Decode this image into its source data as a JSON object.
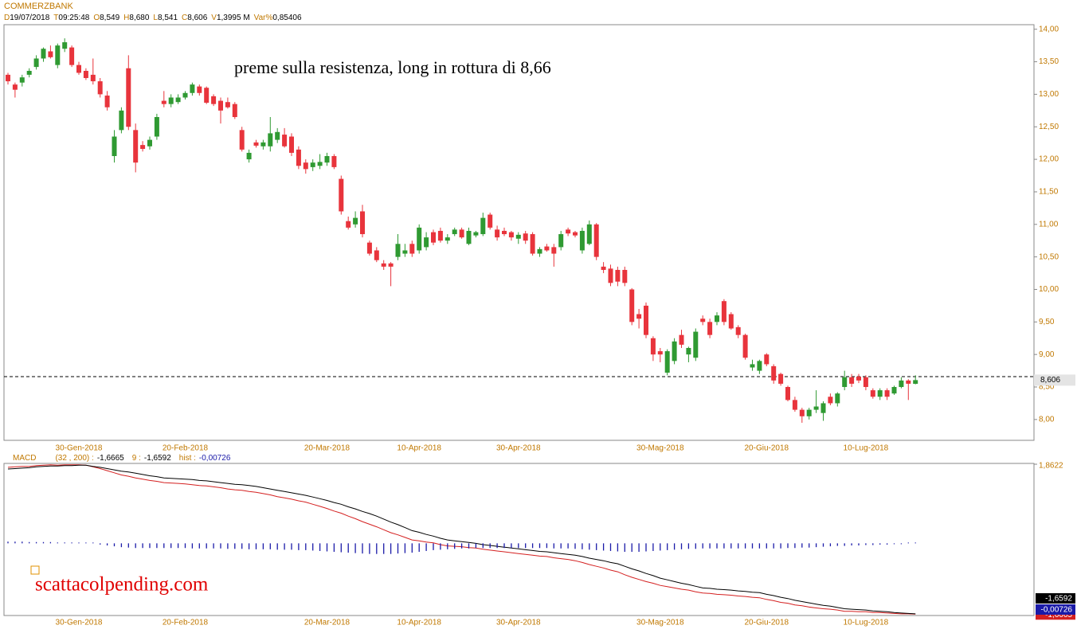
{
  "chart_data": [
    {
      "type": "candlestick",
      "symbol": "COMMERZBANK",
      "info": [
        {
          "key": "D",
          "value": "19/07/2018"
        },
        {
          "key": "T",
          "value": "09:25:48"
        },
        {
          "key": "O",
          "value": "8,549"
        },
        {
          "key": "H",
          "value": "8,680"
        },
        {
          "key": "L",
          "value": "8,541"
        },
        {
          "key": "C",
          "value": "8,606"
        },
        {
          "key": "V",
          "value": "1,3995 M"
        },
        {
          "key": "Var%",
          "value": "0,85406"
        }
      ],
      "annotation": "preme sulla resistenza, long in rottura di 8,66",
      "hline": 8.66,
      "up_color": "#2f9a32",
      "down_color": "#e8343c",
      "categories": [
        null,
        null,
        null,
        null,
        null,
        null,
        null,
        null,
        null,
        null,
        "30-Gen-2018",
        null,
        null,
        null,
        null,
        null,
        null,
        null,
        null,
        null,
        null,
        null,
        null,
        null,
        null,
        "20-Feb-2018",
        null,
        null,
        null,
        null,
        null,
        null,
        null,
        null,
        null,
        null,
        null,
        null,
        null,
        null,
        null,
        null,
        null,
        null,
        null,
        "20-Mar-2018",
        null,
        null,
        null,
        null,
        null,
        null,
        null,
        null,
        null,
        null,
        null,
        null,
        "10-Apr-2018",
        null,
        null,
        null,
        null,
        null,
        null,
        null,
        null,
        null,
        null,
        null,
        null,
        null,
        "30-Apr-2018",
        null,
        null,
        null,
        null,
        null,
        null,
        null,
        null,
        null,
        null,
        null,
        null,
        null,
        null,
        null,
        null,
        null,
        null,
        null,
        "30-Mag-2018",
        null,
        null,
        null,
        null,
        null,
        null,
        null,
        null,
        null,
        null,
        null,
        null,
        null,
        null,
        "20-Giu-2018",
        null,
        null,
        null,
        null,
        null,
        null,
        null,
        null,
        null,
        null,
        null,
        null,
        null,
        "10-Lug-2018",
        null,
        null,
        null,
        null,
        null,
        null,
        null
      ],
      "open": [
        13.3,
        13.15,
        13.18,
        13.3,
        13.42,
        13.55,
        13.66,
        13.45,
        13.7,
        13.72,
        13.45,
        13.36,
        13.3,
        13.2,
        12.98,
        12.05,
        12.45,
        13.4,
        12.45,
        12.22,
        12.2,
        12.35,
        12.9,
        12.85,
        12.88,
        12.95,
        13.02,
        13.12,
        13.1,
        12.97,
        12.9,
        12.88,
        12.85,
        12.45,
        12.0,
        12.26,
        12.2,
        12.2,
        12.3,
        12.38,
        12.35,
        12.15,
        11.95,
        11.88,
        11.9,
        11.95,
        12.05,
        11.7,
        11.05,
        11.0,
        11.2,
        10.72,
        10.6,
        10.4,
        10.4,
        10.5,
        10.55,
        10.7,
        10.6,
        10.65,
        10.88,
        10.9,
        10.75,
        10.85,
        10.92,
        10.7,
        10.83,
        10.85,
        11.15,
        10.92,
        10.9,
        10.88,
        10.78,
        10.86,
        10.85,
        10.55,
        10.66,
        10.65,
        10.65,
        10.92,
        10.88,
        10.6,
        10.7,
        11.0,
        10.35,
        10.32,
        10.3,
        10.3,
        10.0,
        9.62,
        9.75,
        9.25,
        9.05,
        8.72,
        8.9,
        9.3,
        9.0,
        8.95,
        9.55,
        9.5,
        9.5,
        9.82,
        9.62,
        9.42,
        9.3,
        8.8,
        8.75,
        9.0,
        8.82,
        8.7,
        8.5,
        8.3,
        8.15,
        8.05,
        8.15,
        8.1,
        8.35,
        8.25,
        8.5,
        8.65,
        8.66,
        8.65,
        8.45,
        8.35,
        8.45,
        8.4,
        8.5,
        8.6,
        8.549
      ],
      "high": [
        13.33,
        13.18,
        13.3,
        13.4,
        13.6,
        13.72,
        13.75,
        13.78,
        13.86,
        13.75,
        13.5,
        13.4,
        13.55,
        13.25,
        13.05,
        12.45,
        12.8,
        13.6,
        12.55,
        12.28,
        12.35,
        12.7,
        13.05,
        13.0,
        13.0,
        13.05,
        13.18,
        13.15,
        13.12,
        13.0,
        12.95,
        12.95,
        12.88,
        12.5,
        12.15,
        12.3,
        12.3,
        12.65,
        12.48,
        12.48,
        12.4,
        12.2,
        12.0,
        12.0,
        12.08,
        12.1,
        12.08,
        11.75,
        11.12,
        11.2,
        11.3,
        10.75,
        10.65,
        10.45,
        10.42,
        10.85,
        10.7,
        10.75,
        11.0,
        10.88,
        10.92,
        10.95,
        10.85,
        10.95,
        10.95,
        10.95,
        10.9,
        11.18,
        11.18,
        10.98,
        10.95,
        10.9,
        10.88,
        10.9,
        10.88,
        10.65,
        10.7,
        10.7,
        10.9,
        10.95,
        10.9,
        10.95,
        11.06,
        11.02,
        10.42,
        10.38,
        10.35,
        10.35,
        10.02,
        9.7,
        9.8,
        9.28,
        9.1,
        9.08,
        9.25,
        9.38,
        9.12,
        9.4,
        9.6,
        9.55,
        9.65,
        9.85,
        9.65,
        9.45,
        9.32,
        8.92,
        8.92,
        9.02,
        8.85,
        8.72,
        8.52,
        8.35,
        8.18,
        8.18,
        8.45,
        8.28,
        8.4,
        8.42,
        8.75,
        8.7,
        8.7,
        8.68,
        8.48,
        8.48,
        8.48,
        8.52,
        8.65,
        8.62,
        8.68
      ],
      "low": [
        13.15,
        12.95,
        13.12,
        13.26,
        13.38,
        13.5,
        13.55,
        13.4,
        13.65,
        13.42,
        13.3,
        13.22,
        13.15,
        12.95,
        12.75,
        11.95,
        12.4,
        12.45,
        11.8,
        12.12,
        12.15,
        12.3,
        12.8,
        12.8,
        12.85,
        12.92,
        12.98,
        12.98,
        12.85,
        12.82,
        12.55,
        12.78,
        12.62,
        12.12,
        11.95,
        12.18,
        12.15,
        12.12,
        12.25,
        12.18,
        12.05,
        11.85,
        11.78,
        11.82,
        11.85,
        11.9,
        11.85,
        11.15,
        10.92,
        10.95,
        10.8,
        10.52,
        10.42,
        10.3,
        10.05,
        10.45,
        10.5,
        10.5,
        10.55,
        10.6,
        10.68,
        10.72,
        10.7,
        10.82,
        10.78,
        10.68,
        10.8,
        10.82,
        10.92,
        10.75,
        10.82,
        10.75,
        10.7,
        10.7,
        10.52,
        10.5,
        10.58,
        10.35,
        10.6,
        10.82,
        10.8,
        10.55,
        10.68,
        10.45,
        10.25,
        10.05,
        10.05,
        10.05,
        9.45,
        9.4,
        9.25,
        8.9,
        8.88,
        8.68,
        8.85,
        9.1,
        8.88,
        8.9,
        9.45,
        9.25,
        9.45,
        9.45,
        9.38,
        9.25,
        8.92,
        8.75,
        8.7,
        8.82,
        8.55,
        8.52,
        8.28,
        8.12,
        7.95,
        8.0,
        8.1,
        7.98,
        8.22,
        8.2,
        8.45,
        8.5,
        8.56,
        8.45,
        8.32,
        8.3,
        8.3,
        8.38,
        8.48,
        8.3,
        8.541
      ],
      "close": [
        13.2,
        13.07,
        13.26,
        13.36,
        13.55,
        13.7,
        13.57,
        13.75,
        13.8,
        13.45,
        13.33,
        13.25,
        13.2,
        13.0,
        12.8,
        12.35,
        12.75,
        12.5,
        11.95,
        12.16,
        12.3,
        12.65,
        12.85,
        12.95,
        12.95,
        13.02,
        13.15,
        13.02,
        12.87,
        12.85,
        12.75,
        12.8,
        12.65,
        12.15,
        12.1,
        12.21,
        12.26,
        12.4,
        12.42,
        12.2,
        12.1,
        11.9,
        11.85,
        11.95,
        11.96,
        12.05,
        11.88,
        11.2,
        10.95,
        11.1,
        10.85,
        10.55,
        10.45,
        10.35,
        10.35,
        10.7,
        10.6,
        10.55,
        10.95,
        10.8,
        10.72,
        10.75,
        10.8,
        10.92,
        10.8,
        10.9,
        10.88,
        11.1,
        10.95,
        10.8,
        10.85,
        10.8,
        10.84,
        10.75,
        10.55,
        10.62,
        10.6,
        10.55,
        10.85,
        10.86,
        10.83,
        10.9,
        11.0,
        10.5,
        10.3,
        10.1,
        10.12,
        10.1,
        9.5,
        9.55,
        9.3,
        9.0,
        9.0,
        9.05,
        9.2,
        9.15,
        9.1,
        9.35,
        9.5,
        9.3,
        9.6,
        9.5,
        9.4,
        9.3,
        8.95,
        8.85,
        8.9,
        8.85,
        8.6,
        8.55,
        8.3,
        8.15,
        8.05,
        8.15,
        8.2,
        8.25,
        8.25,
        8.4,
        8.65,
        8.55,
        8.6,
        8.5,
        8.35,
        8.45,
        8.35,
        8.5,
        8.6,
        8.55,
        8.606
      ],
      "ylim": [
        7.68,
        14.07
      ],
      "yticks": [
        {
          "value": 8,
          "label": "8,00"
        },
        {
          "value": 8.5,
          "label": "8,50"
        },
        {
          "value": 9,
          "label": "9,00"
        },
        {
          "value": 9.5,
          "label": "9,50"
        },
        {
          "value": 10,
          "label": "10,00"
        },
        {
          "value": 10.5,
          "label": "10,50"
        },
        {
          "value": 11,
          "label": "11,00"
        },
        {
          "value": 11.5,
          "label": "11,50"
        },
        {
          "value": 12,
          "label": "12,00"
        },
        {
          "value": 12.5,
          "label": "12,50"
        },
        {
          "value": 13,
          "label": "13,00"
        },
        {
          "value": 13.5,
          "label": "13,50"
        },
        {
          "value": 14,
          "label": "14,00"
        }
      ]
    },
    {
      "type": "line",
      "title": "MACD",
      "watermark": "scattacolpending.com",
      "series": [
        {
          "name": "(32 , 200) :",
          "color": "#d42020",
          "style": "line",
          "last_label": "-1,6665",
          "values": [
            1.79,
            1.8,
            1.81,
            1.81,
            1.83,
            1.84,
            1.85,
            1.84,
            1.85,
            1.85,
            1.85,
            1.84,
            1.8,
            1.76,
            1.71,
            1.66,
            1.61,
            1.58,
            1.54,
            1.51,
            1.48,
            1.46,
            1.43,
            1.42,
            1.41,
            1.4,
            1.38,
            1.36,
            1.35,
            1.33,
            1.31,
            1.28,
            1.26,
            1.25,
            1.22,
            1.2,
            1.17,
            1.14,
            1.1,
            1.07,
            1.04,
            1.0,
            0.97,
            0.92,
            0.87,
            0.82,
            0.76,
            0.71,
            0.64,
            0.58,
            0.51,
            0.45,
            0.39,
            0.32,
            0.25,
            0.2,
            0.14,
            0.08,
            0.06,
            0.03,
            0.01,
            -0.03,
            -0.06,
            -0.07,
            -0.08,
            -0.1,
            -0.11,
            -0.14,
            -0.16,
            -0.18,
            -0.2,
            -0.22,
            -0.24,
            -0.26,
            -0.28,
            -0.3,
            -0.31,
            -0.34,
            -0.36,
            -0.38,
            -0.41,
            -0.45,
            -0.5,
            -0.54,
            -0.58,
            -0.63,
            -0.67,
            -0.74,
            -0.8,
            -0.85,
            -0.9,
            -0.94,
            -0.99,
            -1.02,
            -1.05,
            -1.08,
            -1.1,
            -1.14,
            -1.17,
            -1.18,
            -1.2,
            -1.21,
            -1.22,
            -1.24,
            -1.25,
            -1.27,
            -1.28,
            -1.32,
            -1.35,
            -1.39,
            -1.41,
            -1.45,
            -1.47,
            -1.5,
            -1.52,
            -1.54,
            -1.55,
            -1.57,
            -1.6,
            -1.6,
            -1.61,
            -1.61,
            -1.63,
            -1.63,
            -1.64,
            -1.65,
            -1.66,
            -1.66,
            -1.6665
          ]
        },
        {
          "name": "9 :",
          "color": "#000000",
          "style": "line",
          "last_label": "-1,6592",
          "values": [
            1.75,
            1.76,
            1.77,
            1.78,
            1.8,
            1.81,
            1.82,
            1.82,
            1.83,
            1.83,
            1.84,
            1.84,
            1.81,
            1.79,
            1.76,
            1.73,
            1.7,
            1.68,
            1.65,
            1.62,
            1.59,
            1.57,
            1.54,
            1.53,
            1.52,
            1.51,
            1.5,
            1.48,
            1.47,
            1.45,
            1.43,
            1.41,
            1.39,
            1.38,
            1.36,
            1.34,
            1.31,
            1.28,
            1.25,
            1.22,
            1.19,
            1.16,
            1.13,
            1.09,
            1.05,
            1.01,
            0.96,
            0.92,
            0.86,
            0.81,
            0.75,
            0.7,
            0.64,
            0.57,
            0.5,
            0.44,
            0.37,
            0.3,
            0.26,
            0.21,
            0.17,
            0.12,
            0.08,
            0.06,
            0.04,
            0.02,
            0.0,
            -0.03,
            -0.05,
            -0.07,
            -0.09,
            -0.11,
            -0.13,
            -0.15,
            -0.17,
            -0.19,
            -0.2,
            -0.22,
            -0.24,
            -0.26,
            -0.28,
            -0.31,
            -0.35,
            -0.38,
            -0.41,
            -0.45,
            -0.48,
            -0.54,
            -0.6,
            -0.65,
            -0.71,
            -0.76,
            -0.82,
            -0.86,
            -0.9,
            -0.94,
            -0.97,
            -1.01,
            -1.05,
            -1.06,
            -1.08,
            -1.09,
            -1.1,
            -1.12,
            -1.13,
            -1.15,
            -1.16,
            -1.2,
            -1.23,
            -1.27,
            -1.3,
            -1.34,
            -1.37,
            -1.4,
            -1.43,
            -1.46,
            -1.48,
            -1.51,
            -1.54,
            -1.55,
            -1.56,
            -1.57,
            -1.59,
            -1.6,
            -1.61,
            -1.63,
            -1.64,
            -1.65,
            -1.6592
          ]
        },
        {
          "name": "hist :",
          "color": "#1a1aa8",
          "style": "histogram",
          "last_label": "-0,00726",
          "values": [
            0.04,
            0.04,
            0.04,
            0.03,
            0.03,
            0.03,
            0.03,
            0.02,
            0.02,
            0.02,
            0.01,
            0.0,
            -0.01,
            -0.03,
            -0.05,
            -0.07,
            -0.09,
            -0.1,
            -0.11,
            -0.11,
            -0.11,
            -0.11,
            -0.11,
            -0.11,
            -0.11,
            -0.11,
            -0.12,
            -0.12,
            -0.12,
            -0.12,
            -0.12,
            -0.13,
            -0.13,
            -0.13,
            -0.14,
            -0.14,
            -0.14,
            -0.14,
            -0.15,
            -0.15,
            -0.15,
            -0.16,
            -0.16,
            -0.17,
            -0.18,
            -0.19,
            -0.2,
            -0.21,
            -0.22,
            -0.23,
            -0.24,
            -0.25,
            -0.25,
            -0.25,
            -0.25,
            -0.24,
            -0.23,
            -0.22,
            -0.2,
            -0.18,
            -0.16,
            -0.15,
            -0.14,
            -0.13,
            -0.12,
            -0.12,
            -0.11,
            -0.11,
            -0.11,
            -0.11,
            -0.11,
            -0.11,
            -0.11,
            -0.11,
            -0.11,
            -0.11,
            -0.11,
            -0.12,
            -0.12,
            -0.12,
            -0.13,
            -0.14,
            -0.15,
            -0.16,
            -0.17,
            -0.18,
            -0.19,
            -0.2,
            -0.2,
            -0.2,
            -0.19,
            -0.18,
            -0.17,
            -0.16,
            -0.15,
            -0.14,
            -0.13,
            -0.13,
            -0.12,
            -0.12,
            -0.12,
            -0.12,
            -0.12,
            -0.12,
            -0.12,
            -0.12,
            -0.12,
            -0.12,
            -0.12,
            -0.12,
            -0.11,
            -0.11,
            -0.1,
            -0.1,
            -0.09,
            -0.08,
            -0.07,
            -0.06,
            -0.06,
            -0.05,
            -0.05,
            -0.04,
            -0.04,
            -0.03,
            -0.03,
            -0.02,
            -0.02,
            -0.01,
            -0.00726
          ]
        }
      ],
      "ylim": [
        -1.68,
        1.8622
      ],
      "yticks": [
        {
          "value": 1.8622,
          "label": "1,8622"
        }
      ]
    }
  ]
}
